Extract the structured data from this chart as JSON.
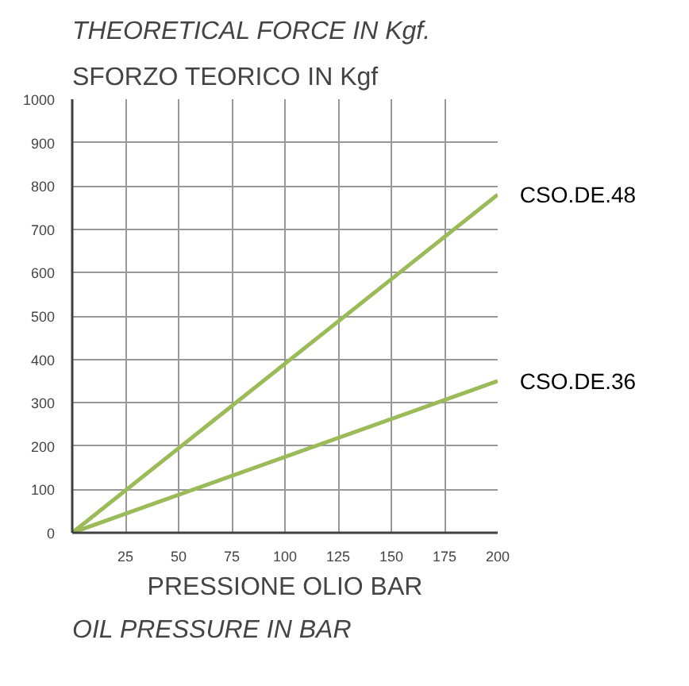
{
  "chart_data": {
    "type": "line",
    "title": "SFORZO TEORICO IN Kgf",
    "subtitle": "THEORETICAL FORCE  IN Kgf.",
    "xlabel": "PRESSIONE OLIO BAR",
    "annotations": [
      "OIL PRESSURE IN BAR"
    ],
    "x": [
      0,
      200
    ],
    "series": [
      {
        "name": "CSO.DE.48",
        "color": "#9bbb59",
        "values": [
          0,
          780
        ]
      },
      {
        "name": "CSO.DE.36",
        "color": "#9bbb59",
        "values": [
          0,
          350
        ]
      }
    ],
    "xlim": [
      0,
      200
    ],
    "ylim": [
      0,
      1000
    ],
    "xticks": [
      25,
      50,
      75,
      100,
      125,
      150,
      175,
      200
    ],
    "yticks": [
      0,
      100,
      200,
      300,
      400,
      500,
      600,
      700,
      800,
      900,
      1000
    ],
    "grid": true,
    "marker": "none",
    "line_style": "solid"
  }
}
